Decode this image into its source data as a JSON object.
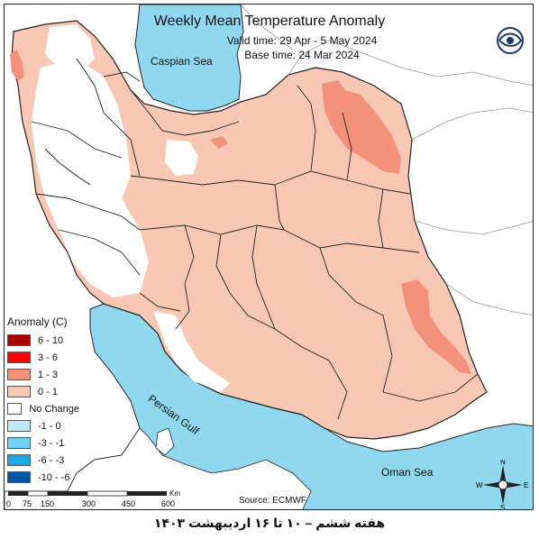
{
  "map": {
    "title": "Weekly Mean Temperature Anomaly",
    "valid_time": "Valid time: 29 Apr - 5 May 2024",
    "base_time": "Base time: 24 Mar 2024",
    "source": "Source: ECMWF",
    "seas": {
      "caspian": "Caspian Sea",
      "persian_gulf": "Persian Gulf",
      "oman": "Oman Sea"
    },
    "footer": "هفته ششم – ۱۰ تا ۱۶ اردیبهشت ۱۴۰۳",
    "colors": {
      "sea": "#8fd8f0",
      "anomaly_0_1": "#f8c8b4",
      "anomaly_1_3": "#f4917a",
      "land_outside": "#ffffff",
      "no_change": "#ffffff",
      "border": "#222222"
    }
  },
  "legend": {
    "title": "Anomaly (C)",
    "items": [
      {
        "label": "6 - 10",
        "color": "#a80000"
      },
      {
        "label": "3 - 6",
        "color": "#ff0000"
      },
      {
        "label": "1 - 3",
        "color": "#f4917a"
      },
      {
        "label": "0 - 1",
        "color": "#f8c8b4"
      },
      {
        "label": "No Change",
        "color": "#ffffff"
      },
      {
        "label": "-1 - 0",
        "color": "#bfe8fb"
      },
      {
        "label": "-3 - -1",
        "color": "#73d0f5"
      },
      {
        "label": "-6 - -3",
        "color": "#1fa9e6"
      },
      {
        "label": "-10 - -6",
        "color": "#0455a4"
      }
    ]
  },
  "scale": {
    "ticks": [
      "0",
      "75",
      "150",
      "300",
      "450",
      "600"
    ],
    "unit": "Km"
  },
  "compass": {
    "n": "N",
    "s": "S",
    "e": "E",
    "w": "W"
  }
}
